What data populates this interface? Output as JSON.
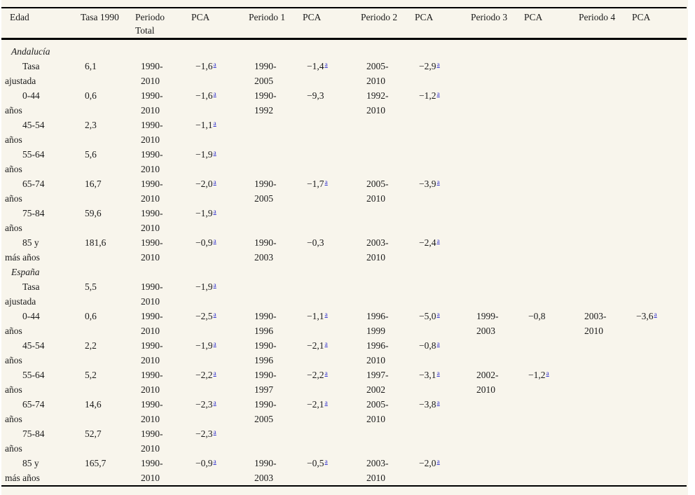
{
  "page": {
    "background_color": "#f8f5ec",
    "link_color": "#3333cc",
    "text_color": "#1a1a1a",
    "footnote_marker": "a"
  },
  "table": {
    "columns": [
      "Edad",
      "Tasa 1990",
      "Periodo\nTotal",
      "PCA",
      "Periodo 1",
      "PCA",
      "Periodo 2",
      "PCA",
      "Periodo 3",
      "PCA",
      "Periodo 4",
      "PCA"
    ],
    "column_keys": [
      "tasa-1990",
      "periodo-total",
      "pca-total",
      "periodo-1",
      "pca-1",
      "periodo-2",
      "pca-2",
      "periodo-3",
      "pca-3",
      "periodo-4",
      "pca-4"
    ],
    "sections": [
      {
        "name": "Andalucía",
        "rows": [
          {
            "label": "Tasa\najustada",
            "cells": [
              {
                "t": "6,1"
              },
              {
                "t": "1990-\n2010"
              },
              {
                "t": "−1,6",
                "sup": true
              },
              {
                "t": "1990-\n2005"
              },
              {
                "t": "−1,4",
                "sup": true
              },
              {
                "t": "2005-\n2010"
              },
              {
                "t": "−2,9",
                "sup": true
              },
              null,
              null,
              null,
              null
            ]
          },
          {
            "label": "0-44\naños",
            "cells": [
              {
                "t": "0,6"
              },
              {
                "t": "1990-\n2010"
              },
              {
                "t": "−1,6",
                "sup": true
              },
              {
                "t": "1990-\n1992"
              },
              {
                "t": "−9,3"
              },
              {
                "t": "1992-\n2010"
              },
              {
                "t": "−1,2",
                "sup": true
              },
              null,
              null,
              null,
              null
            ]
          },
          {
            "label": "45-54\naños",
            "cells": [
              {
                "t": "2,3"
              },
              {
                "t": "1990-\n2010"
              },
              {
                "t": "−1,1",
                "sup": true
              },
              null,
              null,
              null,
              null,
              null,
              null,
              null,
              null
            ]
          },
          {
            "label": "55-64\naños",
            "cells": [
              {
                "t": "5,6"
              },
              {
                "t": "1990-\n2010"
              },
              {
                "t": "−1,9",
                "sup": true
              },
              null,
              null,
              null,
              null,
              null,
              null,
              null,
              null
            ]
          },
          {
            "label": "65-74\naños",
            "cells": [
              {
                "t": "16,7"
              },
              {
                "t": "1990-\n2010"
              },
              {
                "t": "−2,0",
                "sup": true
              },
              {
                "t": "1990-\n2005"
              },
              {
                "t": "−1,7",
                "sup": true
              },
              {
                "t": "2005-\n2010"
              },
              {
                "t": "−3,9",
                "sup": true
              },
              null,
              null,
              null,
              null
            ]
          },
          {
            "label": "75-84\naños",
            "cells": [
              {
                "t": "59,6"
              },
              {
                "t": "1990-\n2010"
              },
              {
                "t": "−1,9",
                "sup": true
              },
              null,
              null,
              null,
              null,
              null,
              null,
              null,
              null
            ]
          },
          {
            "label": "85 y\nmás años",
            "cells": [
              {
                "t": "181,6"
              },
              {
                "t": "1990-\n2010"
              },
              {
                "t": "−0,9",
                "sup": true
              },
              {
                "t": "1990-\n2003"
              },
              {
                "t": "−0,3"
              },
              {
                "t": "2003-\n2010"
              },
              {
                "t": "−2,4",
                "sup": true
              },
              null,
              null,
              null,
              null
            ]
          }
        ]
      },
      {
        "name": "España",
        "rows": [
          {
            "label": "Tasa\najustada",
            "cells": [
              {
                "t": "5,5"
              },
              {
                "t": "1990-\n2010"
              },
              {
                "t": "−1,9",
                "sup": true
              },
              null,
              null,
              null,
              null,
              null,
              null,
              null,
              null
            ]
          },
          {
            "label": "0-44\naños",
            "cells": [
              {
                "t": "0,6"
              },
              {
                "t": "1990-\n2010"
              },
              {
                "t": "−2,5",
                "sup": true
              },
              {
                "t": "1990-\n1996"
              },
              {
                "t": "−1,1",
                "sup": true
              },
              {
                "t": "1996-\n1999"
              },
              {
                "t": "−5,0",
                "sup": true
              },
              {
                "t": "1999-\n2003"
              },
              {
                "t": "−0,8"
              },
              {
                "t": "2003-\n2010"
              },
              {
                "t": "−3,6",
                "sup": true
              }
            ]
          },
          {
            "label": "45-54\naños",
            "cells": [
              {
                "t": "2,2"
              },
              {
                "t": "1990-\n2010"
              },
              {
                "t": "−1,9",
                "sup": true
              },
              {
                "t": "1990-\n1996"
              },
              {
                "t": "−2,1",
                "sup": true
              },
              {
                "t": "1996-\n2010"
              },
              {
                "t": "−0,8",
                "sup": true
              },
              null,
              null,
              null,
              null
            ]
          },
          {
            "label": "55-64\naños",
            "cells": [
              {
                "t": "5,2"
              },
              {
                "t": "1990-\n2010"
              },
              {
                "t": "−2,2",
                "sup": true
              },
              {
                "t": "1990-\n1997"
              },
              {
                "t": "−2,2",
                "sup": true
              },
              {
                "t": "1997-\n2002"
              },
              {
                "t": "−3,1",
                "sup": true
              },
              {
                "t": "2002-\n2010"
              },
              {
                "t": "−1,2",
                "sup": true
              },
              null,
              null
            ]
          },
          {
            "label": "65-74\naños",
            "cells": [
              {
                "t": "14,6"
              },
              {
                "t": "1990-\n2010"
              },
              {
                "t": "−2,3",
                "sup": true
              },
              {
                "t": "1990-\n2005"
              },
              {
                "t": "−2,1",
                "sup": true
              },
              {
                "t": "2005-\n2010"
              },
              {
                "t": "−3,8",
                "sup": true
              },
              null,
              null,
              null,
              null
            ]
          },
          {
            "label": "75-84\naños",
            "cells": [
              {
                "t": "52,7"
              },
              {
                "t": "1990-\n2010"
              },
              {
                "t": "−2,3",
                "sup": true
              },
              null,
              null,
              null,
              null,
              null,
              null,
              null,
              null
            ]
          },
          {
            "label": "85 y\nmás años",
            "cells": [
              {
                "t": "165,7"
              },
              {
                "t": "1990-\n2010"
              },
              {
                "t": "−0,9",
                "sup": true
              },
              {
                "t": "1990-\n2003"
              },
              {
                "t": "−0,5",
                "sup": true
              },
              {
                "t": "2003-\n2010"
              },
              {
                "t": "−2,0",
                "sup": true
              },
              null,
              null,
              null,
              null
            ]
          }
        ]
      }
    ]
  }
}
